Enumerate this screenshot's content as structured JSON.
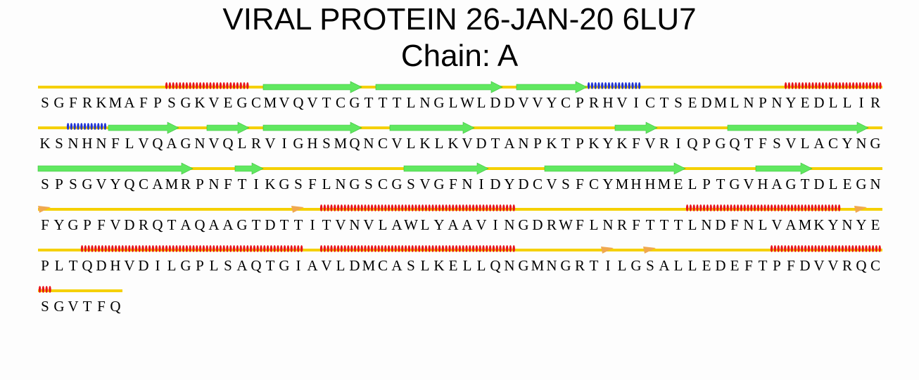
{
  "title": "VIRAL PROTEIN 26-JAN-20 6LU7",
  "subtitle": "Chain: A",
  "colors": {
    "coil": "#f5d000",
    "helix_alpha": "#e8141a",
    "helix_310": "#1f33d6",
    "strand": "#60e860",
    "turn": "#f0a850",
    "text": "#000000"
  },
  "rows": [
    {
      "sequence": "SGFRKMAFPSGKVEGCMVQVTCGTTTLNGLWLDDVVYCPRHVICTSEDMLNPNYEDLLIR",
      "elements": [
        {
          "type": "coil",
          "start": 1,
          "end": 60
        },
        {
          "type": "helix",
          "start": 10,
          "end": 15
        },
        {
          "type": "strand",
          "start": 17,
          "end": 23
        },
        {
          "type": "strand",
          "start": 25,
          "end": 33
        },
        {
          "type": "strand",
          "start": 35,
          "end": 39
        },
        {
          "type": "helix310",
          "start": 40,
          "end": 43
        },
        {
          "type": "helix",
          "start": 54,
          "end": 60
        }
      ]
    },
    {
      "sequence": "KSNHNFLVQAGNVQLRVIGHSMQNCVLKLKVDTANPKTPKYKFVRIQPGQTFSVLACYNG",
      "elements": [
        {
          "type": "coil",
          "start": 1,
          "end": 60
        },
        {
          "type": "helix310",
          "start": 3,
          "end": 5
        },
        {
          "type": "strand",
          "start": 6,
          "end": 10
        },
        {
          "type": "strand",
          "start": 13,
          "end": 15
        },
        {
          "type": "strand",
          "start": 17,
          "end": 23
        },
        {
          "type": "strand",
          "start": 26,
          "end": 31
        },
        {
          "type": "strand",
          "start": 42,
          "end": 44
        },
        {
          "type": "strand",
          "start": 50,
          "end": 59
        }
      ]
    },
    {
      "sequence": "SPSGVYQCAMRPNFTIKGSFLNGSCGSVGFNIDYDCVSFCYMHHMELPTGVHAGTDLEGN",
      "elements": [
        {
          "type": "coil",
          "start": 1,
          "end": 60
        },
        {
          "type": "strand",
          "start": 1,
          "end": 11
        },
        {
          "type": "strand",
          "start": 15,
          "end": 16
        },
        {
          "type": "strand",
          "start": 27,
          "end": 32
        },
        {
          "type": "strand",
          "start": 37,
          "end": 46
        },
        {
          "type": "strand",
          "start": 52,
          "end": 55
        }
      ]
    },
    {
      "sequence": "FYGPFVDRQTAQAAGTDTTITVNVLAWLYAAVINGDRWFLNRFTTTLNDFNLVAMKYNYE",
      "elements": [
        {
          "type": "coil",
          "start": 1,
          "end": 60
        },
        {
          "type": "turn",
          "start": 1,
          "end": 1
        },
        {
          "type": "turn",
          "start": 19,
          "end": 19
        },
        {
          "type": "helix",
          "start": 21,
          "end": 34
        },
        {
          "type": "helix",
          "start": 47,
          "end": 57
        },
        {
          "type": "turn",
          "start": 59,
          "end": 59
        }
      ]
    },
    {
      "sequence": "PLTQDHVDILGPLSAQTGIAVLDMCASLKELLQNGMNGRTILGSALLEDEFTPFDVVRQC",
      "elements": [
        {
          "type": "coil",
          "start": 1,
          "end": 60
        },
        {
          "type": "helix",
          "start": 4,
          "end": 19
        },
        {
          "type": "helix",
          "start": 21,
          "end": 34
        },
        {
          "type": "turn",
          "start": 41,
          "end": 41
        },
        {
          "type": "turn",
          "start": 44,
          "end": 44
        },
        {
          "type": "helix",
          "start": 53,
          "end": 60
        }
      ]
    },
    {
      "sequence": "SGVTFQ",
      "elements": [
        {
          "type": "coil",
          "start": 1,
          "end": 6
        },
        {
          "type": "helix",
          "start": 1,
          "end": 1
        }
      ]
    }
  ]
}
